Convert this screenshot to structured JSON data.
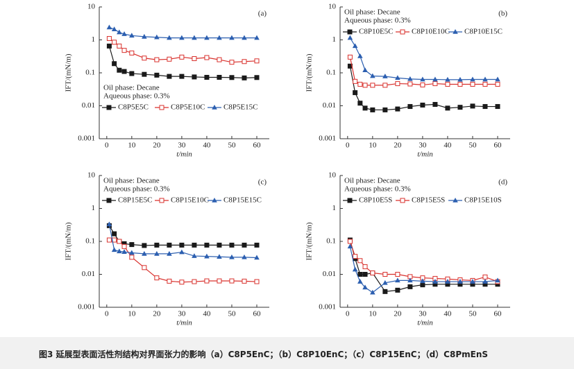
{
  "chart_data": [
    {
      "type": "line",
      "panel_label": "(a)",
      "annotations": [
        "Oil phase: Decane",
        "Aqueous phase: 0.3%"
      ],
      "legend_loc": "lower left",
      "x_label": "t/min",
      "y_label": "IFT/(mN/m)",
      "log_y": true,
      "xlim": [
        -3,
        65
      ],
      "ylim": [
        0.001,
        10
      ],
      "xticks": [
        0,
        10,
        20,
        30,
        40,
        50,
        60
      ],
      "yticks": [
        0.001,
        0.01,
        0.1,
        1,
        10
      ],
      "x": [
        1,
        3,
        5,
        7,
        10,
        15,
        20,
        25,
        30,
        35,
        40,
        45,
        50,
        55,
        60
      ],
      "series": [
        {
          "name": "C8P5E5C",
          "color": "#1a1a1a",
          "marker": "square-filled",
          "values": [
            0.65,
            0.19,
            0.12,
            0.11,
            0.095,
            0.09,
            0.085,
            0.078,
            0.078,
            0.075,
            0.073,
            0.073,
            0.072,
            0.07,
            0.072
          ]
        },
        {
          "name": "C8P5E10C",
          "color": "#d9302c",
          "marker": "square-open",
          "values": [
            1.1,
            0.85,
            0.65,
            0.48,
            0.4,
            0.28,
            0.25,
            0.26,
            0.3,
            0.27,
            0.29,
            0.25,
            0.21,
            0.22,
            0.23
          ]
        },
        {
          "name": "C8P5E15C",
          "color": "#2c5fb0",
          "marker": "triangle",
          "values": [
            2.4,
            2.1,
            1.7,
            1.5,
            1.35,
            1.25,
            1.2,
            1.15,
            1.15,
            1.15,
            1.15,
            1.15,
            1.15,
            1.15,
            1.15
          ]
        }
      ]
    },
    {
      "type": "line",
      "panel_label": "(b)",
      "annotations": [
        "Oil phase: Decane",
        "Aqueous phase: 0.3%"
      ],
      "legend_loc": "upper left",
      "x_label": "t/min",
      "y_label": "IFT/(mN/m)",
      "log_y": true,
      "xlim": [
        -3,
        65
      ],
      "ylim": [
        0.001,
        10
      ],
      "xticks": [
        0,
        10,
        20,
        30,
        40,
        50,
        60
      ],
      "yticks": [
        0.001,
        0.01,
        0.1,
        1,
        10
      ],
      "x": [
        1,
        3,
        5,
        7,
        10,
        15,
        20,
        25,
        30,
        35,
        40,
        45,
        50,
        55,
        60
      ],
      "series": [
        {
          "name": "C8P10E5C",
          "color": "#1a1a1a",
          "marker": "square-filled",
          "values": [
            0.16,
            0.025,
            0.012,
            0.0085,
            0.0075,
            0.0075,
            0.008,
            0.0095,
            0.0105,
            0.011,
            0.0085,
            0.009,
            0.0098,
            0.0095,
            0.0095
          ]
        },
        {
          "name": "C8P10E10C",
          "color": "#d9302c",
          "marker": "square-open",
          "values": [
            0.3,
            0.055,
            0.045,
            0.042,
            0.042,
            0.042,
            0.047,
            0.046,
            0.043,
            0.047,
            0.045,
            0.045,
            0.045,
            0.045,
            0.045
          ]
        },
        {
          "name": "C8P10E15C",
          "color": "#2c5fb0",
          "marker": "triangle",
          "values": [
            1.15,
            0.65,
            0.32,
            0.12,
            0.08,
            0.078,
            0.07,
            0.065,
            0.063,
            0.063,
            0.062,
            0.062,
            0.063,
            0.063,
            0.063
          ]
        }
      ]
    },
    {
      "type": "line",
      "panel_label": "(c)",
      "annotations": [
        "Oil phase: Decane",
        "Aqueous phase: 0.3%"
      ],
      "legend_loc": "upper left",
      "x_label": "t/min",
      "y_label": "IFT/(mN/m)",
      "log_y": true,
      "xlim": [
        -3,
        65
      ],
      "ylim": [
        0.001,
        10
      ],
      "xticks": [
        0,
        10,
        20,
        30,
        40,
        50,
        60
      ],
      "yticks": [
        0.001,
        0.01,
        0.1,
        1,
        10
      ],
      "x": [
        1,
        3,
        5,
        7,
        10,
        15,
        20,
        25,
        30,
        35,
        40,
        45,
        50,
        55,
        60
      ],
      "series": [
        {
          "name": "C8P15E5C",
          "color": "#1a1a1a",
          "marker": "square-filled",
          "values": [
            0.3,
            0.17,
            0.1,
            0.085,
            0.08,
            0.075,
            0.077,
            0.077,
            0.077,
            0.077,
            0.077,
            0.077,
            0.077,
            0.077,
            0.077
          ]
        },
        {
          "name": "C8P15E10C",
          "color": "#d9302c",
          "marker": "square-open",
          "values": [
            0.11,
            0.11,
            0.1,
            0.07,
            0.033,
            0.016,
            0.0078,
            0.0062,
            0.0058,
            0.006,
            0.0063,
            0.0063,
            0.0063,
            0.0062,
            0.006
          ]
        },
        {
          "name": "C8P15E15C",
          "color": "#2c5fb0",
          "marker": "triangle",
          "values": [
            0.33,
            0.055,
            0.05,
            0.048,
            0.045,
            0.042,
            0.042,
            0.042,
            0.047,
            0.036,
            0.035,
            0.034,
            0.033,
            0.033,
            0.032
          ]
        }
      ]
    },
    {
      "type": "line",
      "panel_label": "(d)",
      "annotations": [
        "Oil phase: Decane",
        "Aqueous phase: 0.3%"
      ],
      "legend_loc": "upper left",
      "x_label": "t/min",
      "y_label": "IFT/(mN/m)",
      "log_y": true,
      "xlim": [
        -3,
        65
      ],
      "ylim": [
        0.001,
        10
      ],
      "xticks": [
        0,
        10,
        20,
        30,
        40,
        50,
        60
      ],
      "yticks": [
        0.001,
        0.01,
        0.1,
        1,
        10
      ],
      "x": [
        1,
        3,
        5,
        7,
        10,
        15,
        20,
        25,
        30,
        35,
        40,
        45,
        50,
        55,
        60
      ],
      "series": [
        {
          "name": "C8P10E5S",
          "color": "#1a1a1a",
          "marker": "square-filled",
          "values": [
            0.11,
            0.03,
            0.01,
            0.01,
            0.011,
            0.003,
            0.0033,
            0.0042,
            0.0048,
            0.005,
            0.005,
            0.005,
            0.005,
            0.005,
            0.005
          ]
        },
        {
          "name": "C8P15E5S",
          "color": "#d9302c",
          "marker": "square-open",
          "values": [
            0.1,
            0.035,
            0.026,
            0.017,
            0.011,
            0.01,
            0.01,
            0.0085,
            0.0078,
            0.0075,
            0.0072,
            0.0068,
            0.0065,
            0.0083,
            0.006
          ]
        },
        {
          "name": "C8P15E10S",
          "color": "#2c5fb0",
          "marker": "triangle",
          "values": [
            0.07,
            0.014,
            0.006,
            0.004,
            0.0028,
            0.0055,
            0.0065,
            0.0065,
            0.0062,
            0.006,
            0.006,
            0.006,
            0.006,
            0.006,
            0.0065
          ]
        }
      ]
    }
  ],
  "caption": "图3  延展型表面活性剂结构对界面张力的影响（a）C8P5EnC；（b）C8P10EnC；（c）C8P15EnC；（d）C8PmEnS"
}
